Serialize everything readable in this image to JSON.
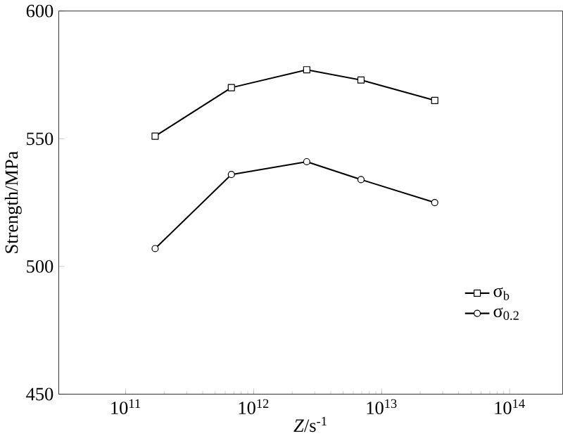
{
  "chart_data": {
    "type": "line",
    "xlabel": "*Z*/s$^{-1}$",
    "ylabel": "Strength/MPa",
    "log": "x",
    "x": [
      170000000000.0,
      670000000000.0,
      2600000000000.0,
      6900000000000.0,
      26000000000000.0
    ],
    "series": [
      {
        "name": "σ$_{b}$",
        "color": "#000000",
        "marker": "square",
        "values": [
          551,
          570,
          577,
          573,
          565
        ]
      },
      {
        "name": "σ$_{0.2}$",
        "color": "#000000",
        "marker": "circle",
        "values": [
          507,
          536,
          541,
          534,
          525
        ]
      }
    ],
    "xlim": [
      30000000000.0,
      260000000000000.0
    ],
    "ylim": [
      450,
      600
    ],
    "xticks": [
      {
        "value": 100000000000.0,
        "label": "10$^{11}$"
      },
      {
        "value": 1000000000000.0,
        "label": "10$^{12}$"
      },
      {
        "value": 10000000000000.0,
        "label": "10$^{13}$"
      },
      {
        "value": 100000000000000.0,
        "label": "10$^{14}$"
      }
    ],
    "yticks": [
      450,
      500,
      550,
      600
    ],
    "line_style": "solid",
    "grid": false,
    "legend": "bottom right"
  }
}
